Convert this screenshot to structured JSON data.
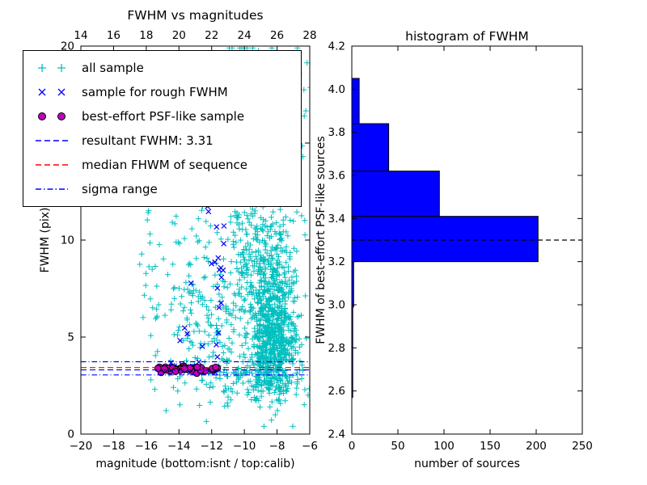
{
  "figure": {
    "background": "#ffffff"
  },
  "colors": {
    "all_sample": "#00bfbf",
    "rough_fwhm_sample": "#0000ff",
    "psf_like_sample": "#bf00bf",
    "resultant_line": "#0000ff",
    "median_line": "#ff0000",
    "sigma_line": "#0000ff",
    "histogram_bar": "#0000ff",
    "histogram_edge": "#000000",
    "histogram_dashed_line": "#000000"
  },
  "chart_data": [
    {
      "type": "scatter",
      "title": "FWHM vs magnitudes",
      "xlabel": "magnitude (bottom:isnt / top:calib)",
      "ylabel": "FWHM (pix)",
      "xlim": [
        -20,
        -6
      ],
      "ylim": [
        0,
        20
      ],
      "grid": false,
      "xticks_bottom": {
        "values": [
          -20,
          -18,
          -16,
          -14,
          -12,
          -10,
          -8,
          -6
        ],
        "labels": [
          "−20",
          "−18",
          "−16",
          "−14",
          "−12",
          "−10",
          "−8",
          "−6"
        ]
      },
      "xticks_top": {
        "values": [
          -20,
          -18,
          -16,
          -14,
          -12,
          -10,
          -8,
          -6
        ],
        "labels": [
          "14",
          "16",
          "18",
          "20",
          "22",
          "24",
          "26",
          "28"
        ]
      },
      "yticks": {
        "values": [
          0,
          5,
          10,
          15,
          20
        ],
        "labels": [
          "0",
          "5",
          "10",
          "15",
          "20"
        ]
      },
      "clamp": {
        "x": [
          -16.4,
          -5.7
        ],
        "y": [
          0.4,
          19.9
        ]
      },
      "series": [
        {
          "name": "all sample",
          "marker": "plus",
          "color": "#00bfbf",
          "clusters": [
            {
              "shape": "gauss",
              "cx": -8.3,
              "cy": 4.8,
              "sx": 0.75,
              "sy": 1.4,
              "n": 620
            },
            {
              "shape": "gauss",
              "cx": -8.4,
              "cy": 7.8,
              "sx": 0.8,
              "sy": 1.6,
              "n": 260
            },
            {
              "shape": "gauss",
              "cx": -8.6,
              "cy": 11.0,
              "sx": 0.9,
              "sy": 1.5,
              "n": 90
            },
            {
              "shape": "gauss",
              "cx": -10.35,
              "cy": 13.0,
              "sx": 0.35,
              "sy": 3.6,
              "n": 110
            },
            {
              "shape": "gauss",
              "cx": -9.6,
              "cy": 17.5,
              "sx": 1.1,
              "sy": 1.7,
              "n": 45
            },
            {
              "shape": "gauss",
              "cx": -7.3,
              "cy": 15.5,
              "sx": 0.9,
              "sy": 2.2,
              "n": 35
            },
            {
              "shape": "gauss",
              "cx": -13.6,
              "cy": 7.5,
              "sx": 1.3,
              "sy": 2.7,
              "n": 60
            },
            {
              "shape": "gauss",
              "cx": -11.8,
              "cy": 5.0,
              "sx": 1.1,
              "sy": 1.7,
              "n": 80
            },
            {
              "shape": "gauss",
              "cx": -9.4,
              "cy": 2.8,
              "sx": 1.7,
              "sy": 0.6,
              "n": 130
            },
            {
              "shape": "uniform",
              "x": [
                -16.3,
                -12.6
              ],
              "y": [
                2.2,
                13.0
              ],
              "n": 40
            },
            {
              "shape": "gauss",
              "cx": -10.9,
              "cy": 8.8,
              "sx": 1.8,
              "sy": 3.2,
              "n": 130
            }
          ]
        },
        {
          "name": "sample for rough FWHM",
          "marker": "x",
          "color": "#0000ff",
          "clusters": [
            {
              "shape": "uniform",
              "x": [
                -12.9,
                -11.2
              ],
              "y": [
                3.2,
                13.9
              ],
              "n": 26
            },
            {
              "shape": "band",
              "x": [
                -15.1,
                -11.5
              ],
              "y_mean": 3.32,
              "y_sigma": 0.13,
              "n": 24
            },
            {
              "shape": "uniform",
              "x": [
                -14.3,
                -13.2
              ],
              "y": [
                4.3,
                7.8
              ],
              "n": 4
            }
          ]
        },
        {
          "name": "best-effort PSF-like sample",
          "marker": "circle",
          "color": "#bf00bf",
          "edge_color": "#000000",
          "clusters": [
            {
              "shape": "band",
              "x": [
                -15.35,
                -11.55
              ],
              "y_mean": 3.37,
              "y_sigma": 0.08,
              "n": 52
            }
          ]
        }
      ],
      "lines": [
        {
          "name": "resultant FWHM: 3.31",
          "y": 3.31,
          "color": "#0000ff",
          "style": "dashed"
        },
        {
          "name": "median FHWM of sequence",
          "y": 3.43,
          "color": "#ff0000",
          "style": "dashed"
        },
        {
          "name": "sigma range",
          "y": [
            3.05,
            3.73
          ],
          "color": "#0000ff",
          "style": "dashdot"
        }
      ],
      "legend": {
        "position": "upper-left",
        "entries": [
          {
            "label": "all sample",
            "marker": "plus",
            "color": "#00bfbf"
          },
          {
            "label": "sample for rough FWHM",
            "marker": "x",
            "color": "#0000ff"
          },
          {
            "label": "best-effort PSF-like sample",
            "marker": "circle",
            "color": "#bf00bf"
          },
          {
            "label": "resultant FWHM: 3.31",
            "marker": "dashed-line",
            "color": "#0000ff"
          },
          {
            "label": "median FHWM of sequence",
            "marker": "dashed-line",
            "color": "#ff0000"
          },
          {
            "label": "sigma range",
            "marker": "dashdot-line",
            "color": "#0000ff"
          }
        ]
      }
    },
    {
      "type": "bar",
      "orientation": "horizontal",
      "title": "histogram of FWHM",
      "xlabel": "number of sources",
      "ylabel": "FWHM of best-effort PSF-like sources",
      "xlim": [
        0,
        250
      ],
      "ylim": [
        2.4,
        4.2
      ],
      "grid": false,
      "xticks": {
        "values": [
          0,
          50,
          100,
          150,
          200,
          250
        ],
        "labels": [
          "0",
          "50",
          "100",
          "150",
          "200",
          "250"
        ]
      },
      "yticks": {
        "values": [
          2.4,
          2.6,
          2.8,
          3.0,
          3.2,
          3.4,
          3.6,
          3.8,
          4.0,
          4.2
        ],
        "labels": [
          "2.4",
          "2.6",
          "2.8",
          "3.0",
          "3.2",
          "3.4",
          "3.6",
          "3.8",
          "4.0",
          "4.2"
        ]
      },
      "bin_edges": [
        2.57,
        2.78,
        2.99,
        3.2,
        3.41,
        3.62,
        3.84,
        4.05
      ],
      "counts": [
        1,
        1,
        2,
        202,
        95,
        40,
        8
      ],
      "bar_color": "#0000ff",
      "bar_edge_color": "#000000",
      "dashed_line": {
        "y": 3.3,
        "color": "#000000",
        "style": "dashed"
      }
    }
  ]
}
